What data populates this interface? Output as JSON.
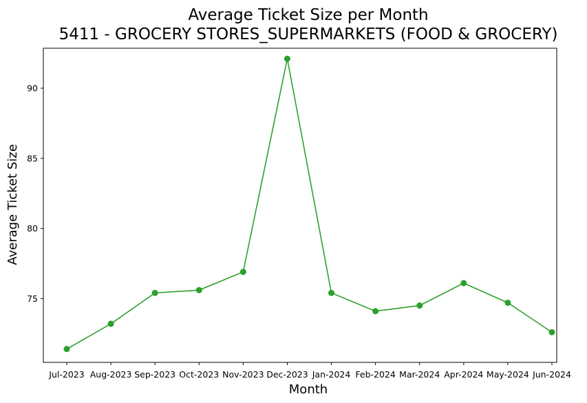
{
  "chart_data": {
    "type": "line",
    "title": "Average Ticket Size per Month",
    "subtitle": "5411 - GROCERY STORES_SUPERMARKETS (FOOD & GROCERY)",
    "xlabel": "Month",
    "ylabel": "Average Ticket Size",
    "categories": [
      "Jul-2023",
      "Aug-2023",
      "Sep-2023",
      "Oct-2023",
      "Nov-2023",
      "Dec-2023",
      "Jan-2024",
      "Feb-2024",
      "Mar-2024",
      "Apr-2024",
      "May-2024",
      "Jun-2024"
    ],
    "series": [
      {
        "values": [
          71.4,
          73.2,
          75.4,
          75.6,
          76.9,
          92.1,
          75.4,
          74.1,
          74.5,
          76.1,
          74.7,
          72.6
        ],
        "color": "#2ca02c",
        "marker": "circle"
      }
    ],
    "ylim": [
      70.45,
      92.85
    ],
    "yticks": [
      75,
      80,
      85,
      90
    ],
    "grid": false,
    "legend": "none"
  }
}
